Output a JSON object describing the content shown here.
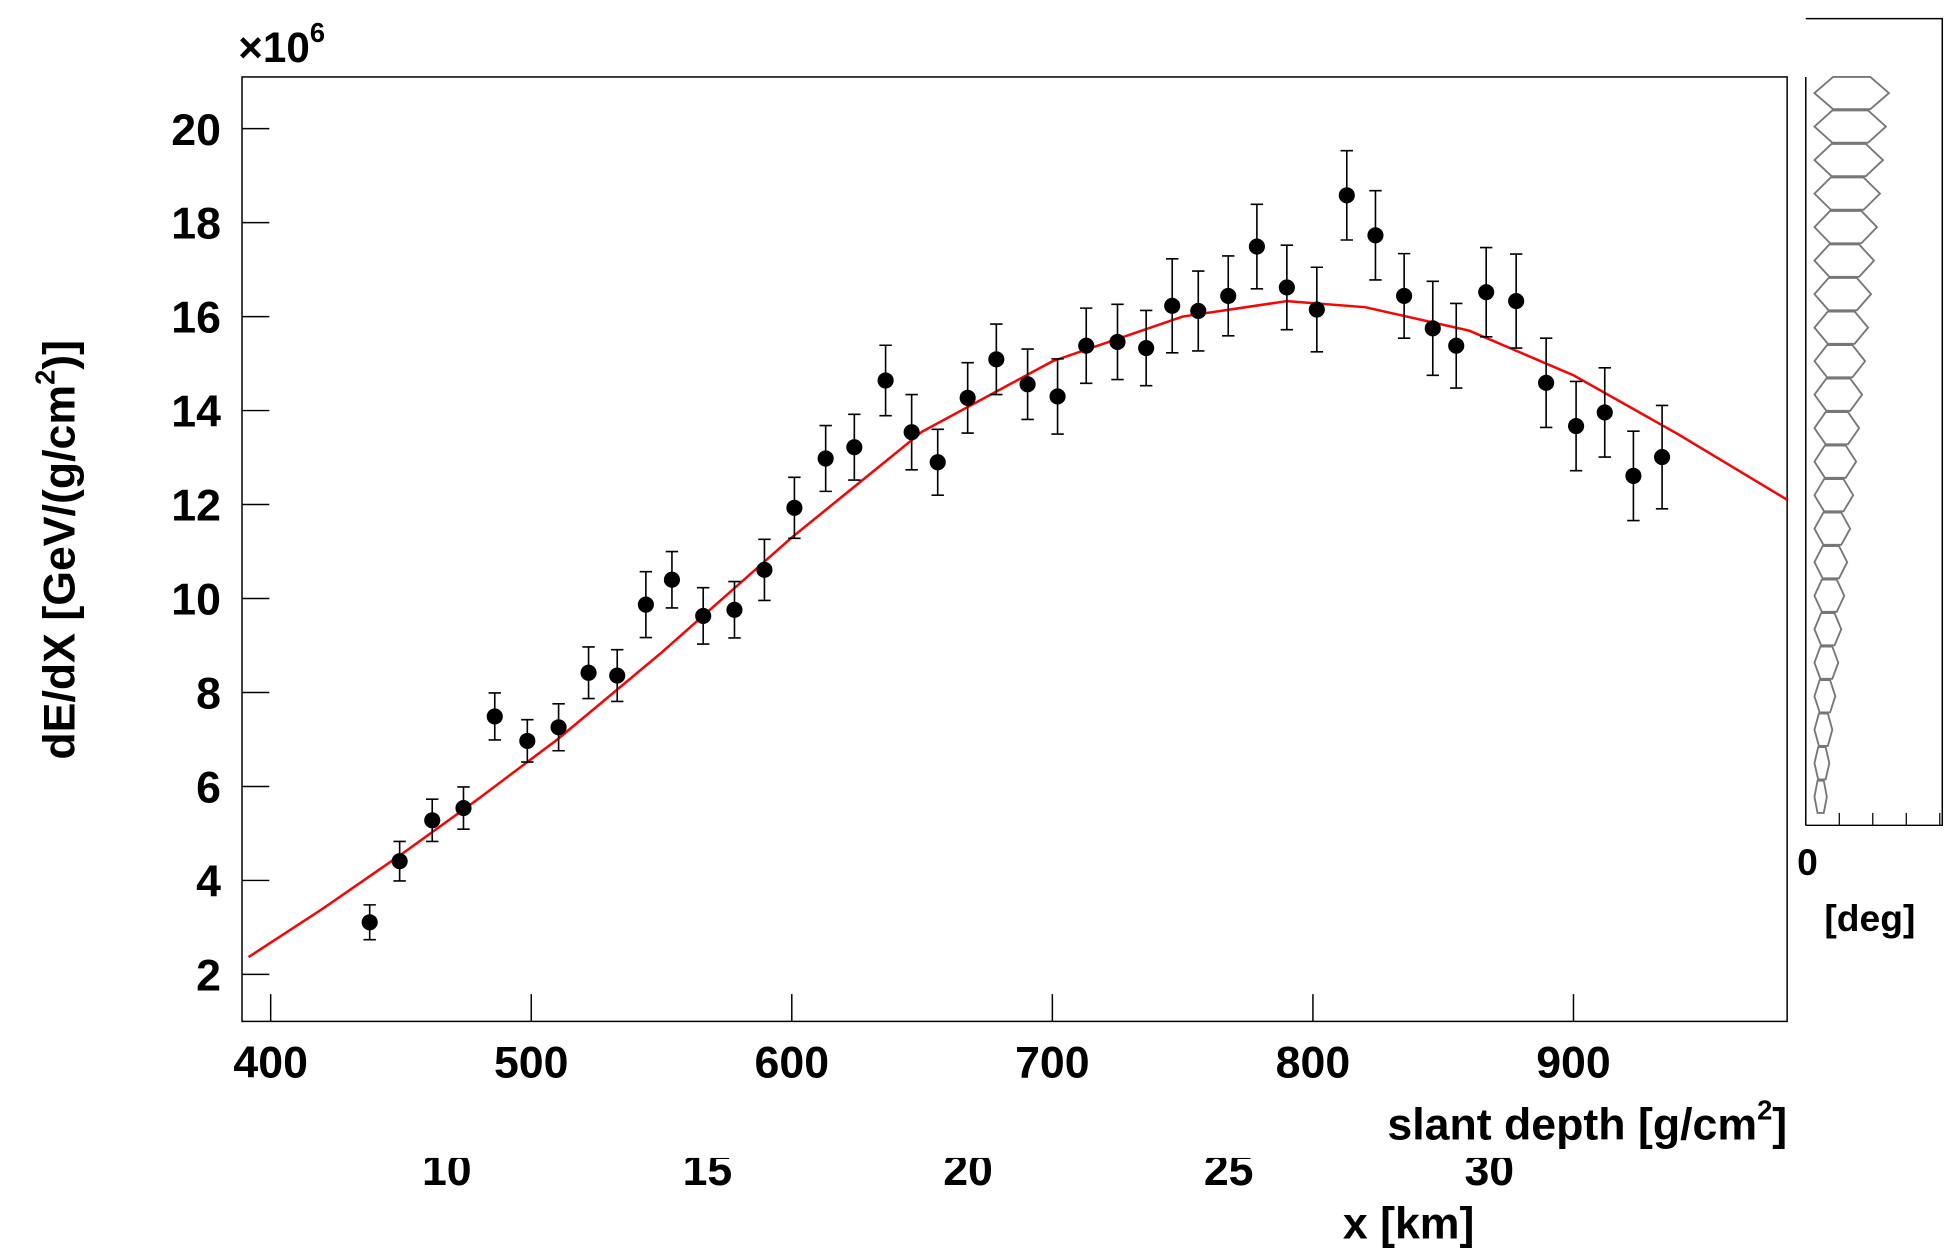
{
  "chart_data": {
    "type": "scatter",
    "multiplier": [
      "×10",
      "6"
    ],
    "ylabel": [
      "dE/dX [GeV/(g/cm",
      "2",
      ")]"
    ],
    "xlabel": [
      "slant depth [g/cm",
      "2",
      "]"
    ],
    "xlim": [
      389,
      982
    ],
    "ylim": [
      1.0,
      21.1
    ],
    "xticks": [
      400,
      500,
      600,
      700,
      800,
      900
    ],
    "yticks": [
      2,
      4,
      6,
      8,
      10,
      12,
      14,
      16,
      18,
      20
    ],
    "color": "#000000",
    "x": [
      438,
      449.5,
      462,
      474,
      486,
      498.5,
      510.5,
      522,
      533,
      544,
      554,
      566,
      578,
      589.5,
      601,
      613,
      624,
      636,
      646,
      656,
      667.5,
      678.5,
      690.5,
      702,
      713,
      725,
      736,
      746,
      756,
      767.5,
      778.5,
      790,
      801.5,
      813,
      824,
      835,
      846,
      855,
      866.5,
      878,
      889.5,
      901,
      912,
      923,
      934
    ],
    "values": [
      3.11,
      4.41,
      5.28,
      5.54,
      7.49,
      6.97,
      7.26,
      8.42,
      8.36,
      9.87,
      10.4,
      9.63,
      9.76,
      10.61,
      11.93,
      12.98,
      13.22,
      14.64,
      13.54,
      12.9,
      14.27,
      15.09,
      14.56,
      14.3,
      15.38,
      15.46,
      15.33,
      16.23,
      16.12,
      16.44,
      17.49,
      16.62,
      16.15,
      18.58,
      17.73,
      16.44,
      15.75,
      15.38,
      16.52,
      16.33,
      14.59,
      13.67,
      13.96,
      12.61,
      13.01
    ],
    "errors": [
      0.37,
      0.42,
      0.45,
      0.45,
      0.5,
      0.45,
      0.5,
      0.55,
      0.55,
      0.7,
      0.6,
      0.6,
      0.6,
      0.65,
      0.65,
      0.7,
      0.7,
      0.75,
      0.8,
      0.7,
      0.75,
      0.75,
      0.75,
      0.8,
      0.8,
      0.8,
      0.8,
      1.0,
      0.85,
      0.85,
      0.9,
      0.9,
      0.9,
      0.95,
      0.95,
      0.9,
      1.0,
      0.9,
      0.95,
      1.0,
      0.95,
      0.95,
      0.95,
      0.95,
      1.1
    ],
    "fit": {
      "color": "#ff0000",
      "x": [
        391.5,
        420,
        450,
        480,
        510,
        550,
        600,
        650,
        700,
        750,
        790,
        820,
        860,
        900,
        940,
        982
      ],
      "values": [
        2.37,
        3.4,
        4.55,
        5.75,
        7.0,
        8.85,
        11.3,
        13.55,
        15.05,
        16.0,
        16.33,
        16.2,
        15.7,
        14.75,
        13.5,
        12.1
      ]
    },
    "x2label": "x [km]",
    "x2ticklabels": [
      "10",
      "15",
      "20",
      "25",
      "30"
    ],
    "side_panel": {
      "tick": "0",
      "label": "[deg]"
    }
  }
}
